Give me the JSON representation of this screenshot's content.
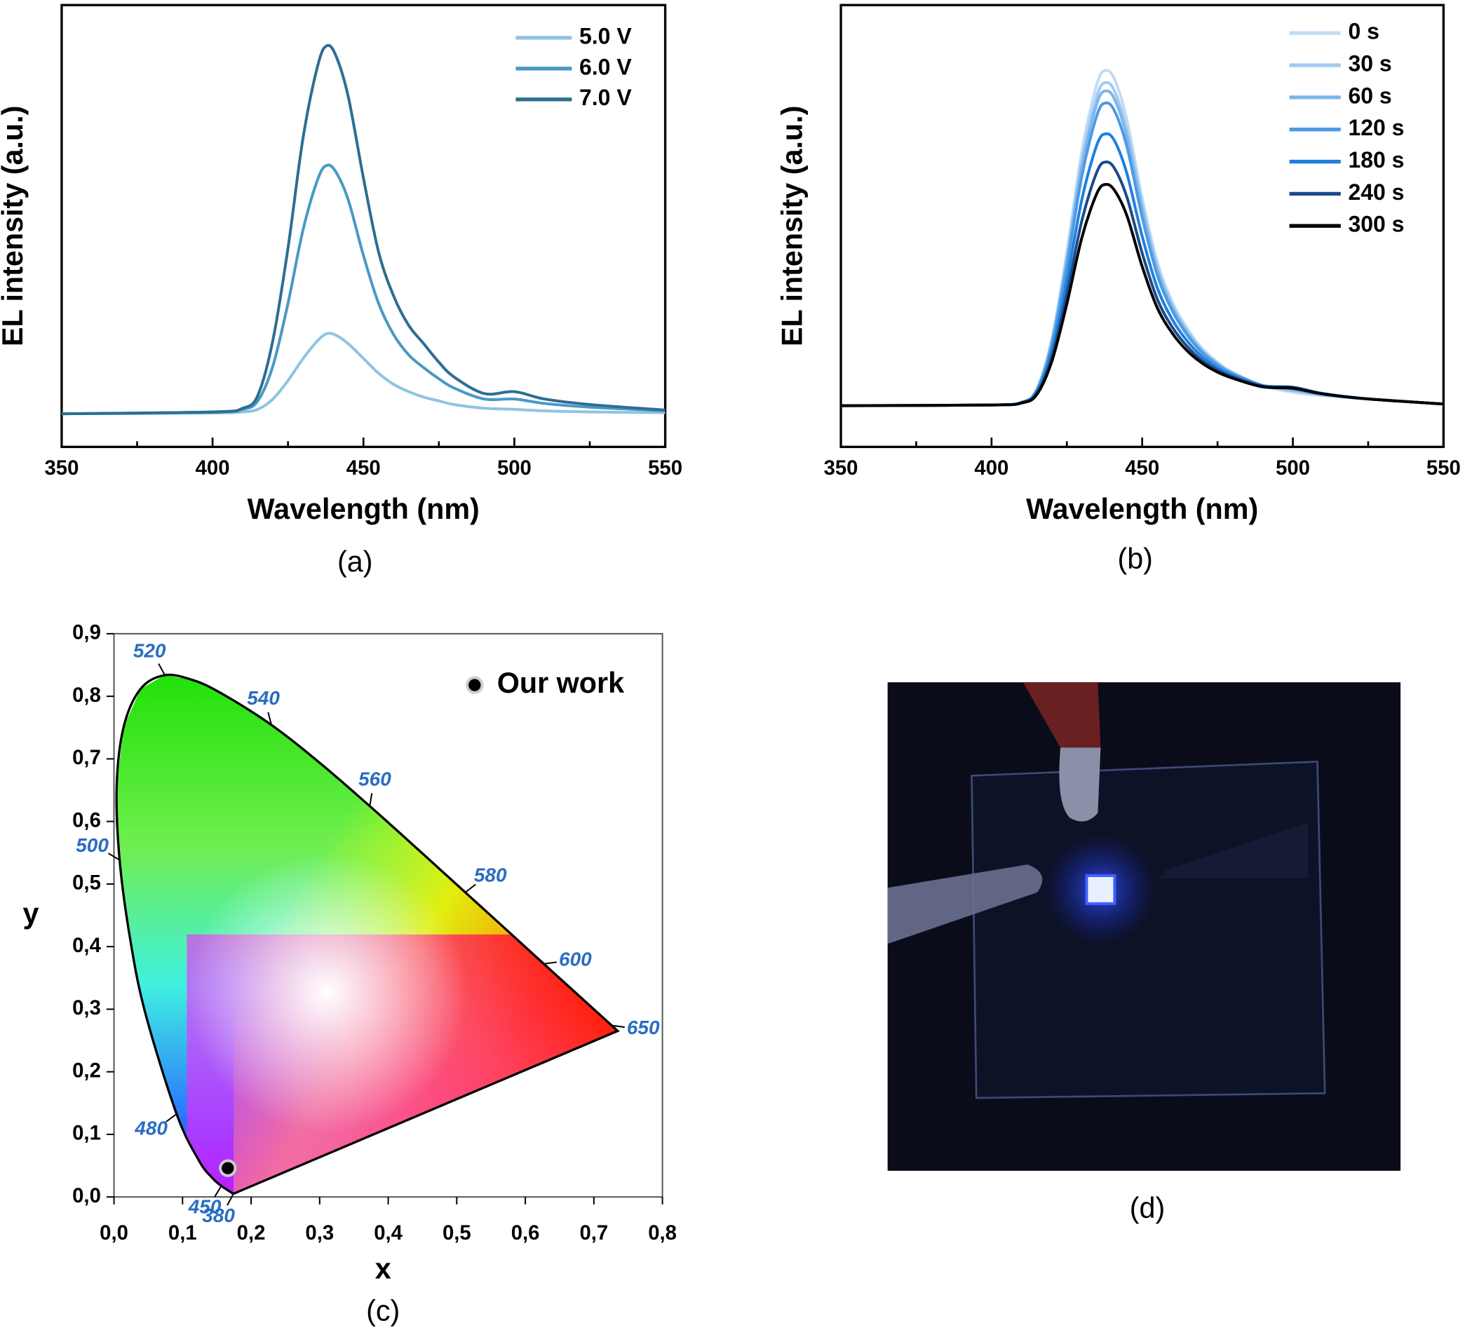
{
  "chart_data": [
    {
      "type": "line",
      "caption": "(a)",
      "xlabel": "Wavelength (nm)",
      "ylabel": "EL intensity (a.u.)",
      "x": [
        350,
        400,
        410,
        415,
        420,
        425,
        430,
        435,
        438,
        441,
        445,
        450,
        455,
        460,
        465,
        470,
        475,
        480,
        490,
        500,
        510,
        525,
        550
      ],
      "xlim": [
        350,
        550
      ],
      "xticks": [
        350,
        400,
        450,
        500,
        550
      ],
      "xminor": [
        375,
        425,
        475,
        525
      ],
      "ylim": [
        -0.09,
        1.11
      ],
      "legend": "upper right",
      "series": [
        {
          "name": "5.0 V",
          "color": "#8ec4e2",
          "values": [
            0,
            0.002,
            0.005,
            0.012,
            0.04,
            0.09,
            0.15,
            0.2,
            0.218,
            0.213,
            0.19,
            0.15,
            0.11,
            0.08,
            0.06,
            0.045,
            0.035,
            0.025,
            0.015,
            0.012,
            0.008,
            0.005,
            0.003
          ]
        },
        {
          "name": "6.0 V",
          "color": "#4a98c6",
          "values": [
            0,
            0.004,
            0.012,
            0.035,
            0.13,
            0.3,
            0.5,
            0.64,
            0.675,
            0.655,
            0.58,
            0.43,
            0.3,
            0.215,
            0.16,
            0.125,
            0.095,
            0.07,
            0.04,
            0.04,
            0.028,
            0.018,
            0.008
          ]
        },
        {
          "name": "7.0 V",
          "color": "#2d6e93",
          "values": [
            0,
            0.005,
            0.015,
            0.05,
            0.2,
            0.45,
            0.75,
            0.95,
            1,
            0.97,
            0.86,
            0.64,
            0.44,
            0.32,
            0.24,
            0.19,
            0.14,
            0.1,
            0.055,
            0.06,
            0.04,
            0.025,
            0.01
          ]
        }
      ]
    },
    {
      "type": "line",
      "caption": "(b)",
      "xlabel": "Wavelength (nm)",
      "ylabel": "EL intensity (a.u.)",
      "x": [
        350,
        400,
        410,
        415,
        420,
        425,
        430,
        435,
        438,
        441,
        445,
        450,
        455,
        460,
        465,
        470,
        475,
        480,
        490,
        500,
        510,
        525,
        550
      ],
      "xlim": [
        350,
        550
      ],
      "xticks": [
        350,
        400,
        450,
        500,
        550
      ],
      "xminor": [
        375,
        425,
        475,
        525
      ],
      "ylim": [
        -0.123,
        1.195
      ],
      "legend": "upper right",
      "series": [
        {
          "name": "0 s",
          "color": "#c0dcf5",
          "values": [
            0,
            0.002,
            0.01,
            0.05,
            0.2,
            0.46,
            0.76,
            0.96,
            1,
            0.97,
            0.85,
            0.62,
            0.43,
            0.31,
            0.23,
            0.17,
            0.13,
            0.1,
            0.06,
            0.04,
            0.03,
            0.02,
            0.005
          ]
        },
        {
          "name": "30 s",
          "color": "#a3cbf1",
          "values": [
            0,
            0.002,
            0.01,
            0.048,
            0.193,
            0.443,
            0.733,
            0.925,
            0.964,
            0.935,
            0.82,
            0.6,
            0.415,
            0.3,
            0.222,
            0.165,
            0.126,
            0.098,
            0.06,
            0.045,
            0.032,
            0.02,
            0.005
          ]
        },
        {
          "name": "60 s",
          "color": "#7db5ec",
          "values": [
            0,
            0.002,
            0.01,
            0.047,
            0.188,
            0.432,
            0.714,
            0.902,
            0.939,
            0.911,
            0.8,
            0.585,
            0.405,
            0.293,
            0.217,
            0.162,
            0.124,
            0.097,
            0.06,
            0.047,
            0.033,
            0.02,
            0.005
          ]
        },
        {
          "name": "120 s",
          "color": "#4b9be4",
          "values": [
            0,
            0.002,
            0.01,
            0.045,
            0.181,
            0.415,
            0.686,
            0.867,
            0.903,
            0.876,
            0.77,
            0.562,
            0.39,
            0.283,
            0.21,
            0.157,
            0.121,
            0.095,
            0.06,
            0.05,
            0.034,
            0.02,
            0.005
          ]
        },
        {
          "name": "180 s",
          "color": "#1f7fe0",
          "values": [
            0,
            0.002,
            0.01,
            0.041,
            0.162,
            0.373,
            0.616,
            0.779,
            0.811,
            0.787,
            0.69,
            0.505,
            0.352,
            0.257,
            0.192,
            0.145,
            0.113,
            0.09,
            0.06,
            0.055,
            0.036,
            0.02,
            0.005
          ]
        },
        {
          "name": "240 s",
          "color": "#1c4a8a",
          "values": [
            0,
            0.002,
            0.009,
            0.037,
            0.145,
            0.334,
            0.553,
            0.698,
            0.727,
            0.705,
            0.62,
            0.455,
            0.318,
            0.234,
            0.176,
            0.134,
            0.106,
            0.086,
            0.058,
            0.055,
            0.036,
            0.02,
            0.005
          ]
        },
        {
          "name": "300 s",
          "color": "#000000",
          "values": [
            0,
            0.002,
            0.008,
            0.033,
            0.132,
            0.304,
            0.502,
            0.634,
            0.66,
            0.64,
            0.565,
            0.415,
            0.292,
            0.216,
            0.163,
            0.126,
            0.1,
            0.082,
            0.056,
            0.052,
            0.035,
            0.02,
            0.005
          ]
        }
      ]
    },
    {
      "type": "scatter",
      "caption": "(c)",
      "xlabel": "x",
      "ylabel": "y",
      "xlim": [
        0,
        0.8
      ],
      "ylim": [
        0,
        0.9
      ],
      "xticks": [
        {
          "value": 0,
          "label": "0,0"
        },
        {
          "value": 0.1,
          "label": "0,1"
        },
        {
          "value": 0.2,
          "label": "0,2"
        },
        {
          "value": 0.3,
          "label": "0,3"
        },
        {
          "value": 0.4,
          "label": "0,4"
        },
        {
          "value": 0.5,
          "label": "0,5"
        },
        {
          "value": 0.6,
          "label": "0,6"
        },
        {
          "value": 0.7,
          "label": "0,7"
        },
        {
          "value": 0.8,
          "label": "0,8"
        }
      ],
      "yticks": [
        {
          "value": 0,
          "label": "0,0"
        },
        {
          "value": 0.1,
          "label": "0,1"
        },
        {
          "value": 0.2,
          "label": "0,2"
        },
        {
          "value": 0.3,
          "label": "0,3"
        },
        {
          "value": 0.4,
          "label": "0,4"
        },
        {
          "value": 0.5,
          "label": "0,5"
        },
        {
          "value": 0.6,
          "label": "0,6"
        },
        {
          "value": 0.7,
          "label": "0,7"
        },
        {
          "value": 0.8,
          "label": "0,8"
        },
        {
          "value": 0.9,
          "label": "0,9"
        }
      ],
      "locus": {
        "x": [
          0.1741,
          0.1566,
          0.144,
          0.1241,
          0.0913,
          0.0454,
          0.0235,
          0.0082,
          0.0039,
          0.0139,
          0.0389,
          0.0743,
          0.1142,
          0.1547,
          0.2296,
          0.3016,
          0.3731,
          0.4441,
          0.5125,
          0.5752,
          0.627,
          0.6915,
          0.726,
          0.7347
        ],
        "y": [
          0.005,
          0.0177,
          0.0297,
          0.0578,
          0.1327,
          0.295,
          0.4127,
          0.5384,
          0.6548,
          0.7502,
          0.812,
          0.8338,
          0.8262,
          0.8059,
          0.7543,
          0.6923,
          0.6245,
          0.5547,
          0.4866,
          0.4242,
          0.3725,
          0.3083,
          0.274,
          0.2653
        ]
      },
      "annotations": [
        {
          "text": "380",
          "x": 0.1741,
          "y": 0.005
        },
        {
          "text": "450",
          "x": 0.1566,
          "y": 0.0177
        },
        {
          "text": "480",
          "x": 0.0913,
          "y": 0.1327
        },
        {
          "text": "500",
          "x": 0.0082,
          "y": 0.5384
        },
        {
          "text": "520",
          "x": 0.0743,
          "y": 0.8338
        },
        {
          "text": "540",
          "x": 0.2296,
          "y": 0.7543
        },
        {
          "text": "560",
          "x": 0.3731,
          "y": 0.6245
        },
        {
          "text": "580",
          "x": 0.5125,
          "y": 0.4866
        },
        {
          "text": "600",
          "x": 0.627,
          "y": 0.3725
        },
        {
          "text": "650",
          "x": 0.726,
          "y": 0.274
        }
      ],
      "series": [
        {
          "name": "Our work",
          "color": "#000000",
          "x": [
            0.166
          ],
          "values": [
            0.046
          ]
        }
      ],
      "legend": "upper right"
    }
  ],
  "photo": {
    "caption": "(d)"
  }
}
